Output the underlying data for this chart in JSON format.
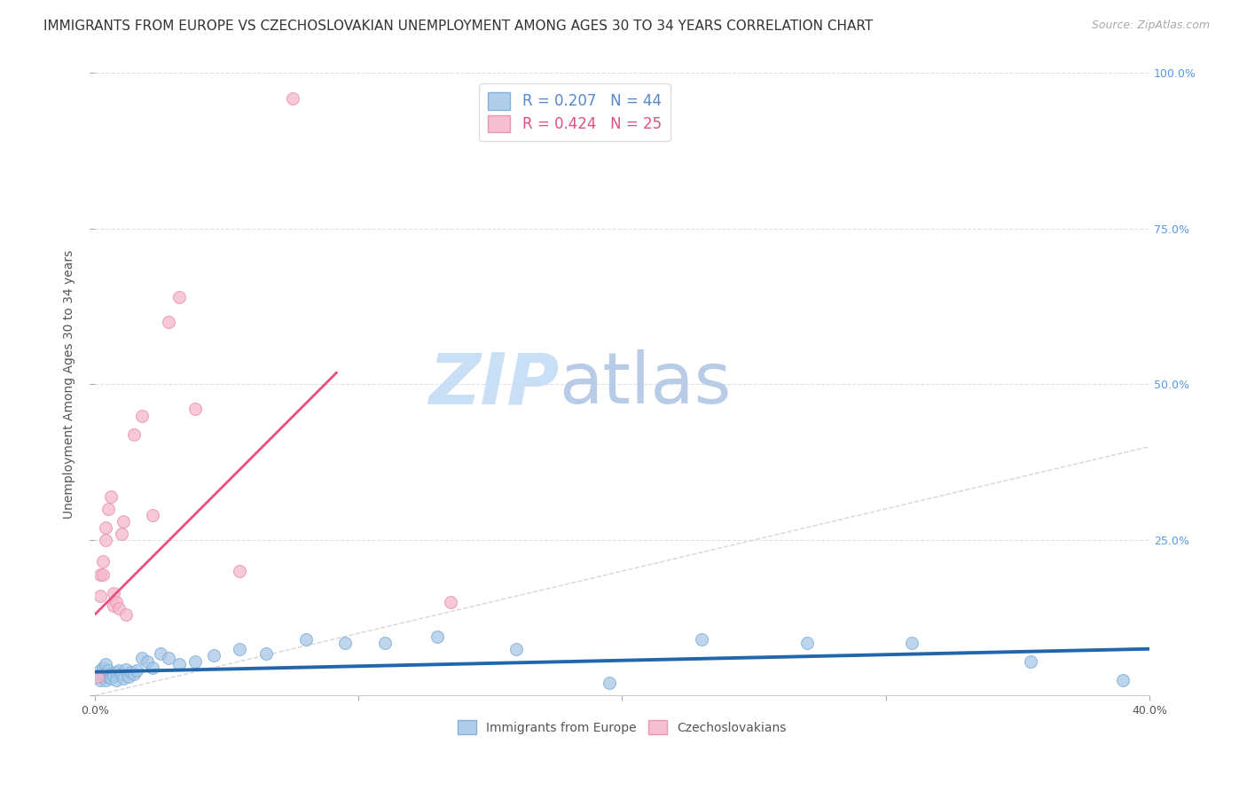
{
  "title": "IMMIGRANTS FROM EUROPE VS CZECHOSLOVAKIAN UNEMPLOYMENT AMONG AGES 30 TO 34 YEARS CORRELATION CHART",
  "source": "Source: ZipAtlas.com",
  "ylabel": "Unemployment Among Ages 30 to 34 years",
  "xlim": [
    0.0,
    0.4
  ],
  "ylim": [
    0.0,
    1.0
  ],
  "xticks": [
    0.0,
    0.1,
    0.2,
    0.3,
    0.4
  ],
  "xtick_labels": [
    "0.0%",
    "",
    "",
    "",
    "40.0%"
  ],
  "yticks": [
    0.0,
    0.25,
    0.5,
    0.75,
    1.0
  ],
  "ytick_labels_right": [
    "",
    "25.0%",
    "50.0%",
    "75.0%",
    "100.0%"
  ],
  "legend_entries": [
    {
      "label": "R = 0.207   N = 44"
    },
    {
      "label": "R = 0.424   N = 25"
    }
  ],
  "watermark_zip": "ZIP",
  "watermark_atlas": "atlas",
  "watermark_color_zip": "#c8dff5",
  "watermark_color_atlas": "#b8cce8",
  "blue_scatter_x": [
    0.001,
    0.002,
    0.002,
    0.003,
    0.003,
    0.003,
    0.004,
    0.004,
    0.005,
    0.005,
    0.006,
    0.006,
    0.007,
    0.008,
    0.008,
    0.009,
    0.01,
    0.011,
    0.012,
    0.013,
    0.014,
    0.015,
    0.016,
    0.018,
    0.02,
    0.022,
    0.025,
    0.028,
    0.032,
    0.038,
    0.045,
    0.055,
    0.065,
    0.08,
    0.095,
    0.11,
    0.13,
    0.16,
    0.195,
    0.23,
    0.27,
    0.31,
    0.355,
    0.39
  ],
  "blue_scatter_y": [
    0.03,
    0.025,
    0.04,
    0.03,
    0.035,
    0.045,
    0.025,
    0.05,
    0.03,
    0.04,
    0.035,
    0.028,
    0.032,
    0.038,
    0.025,
    0.04,
    0.035,
    0.028,
    0.042,
    0.03,
    0.038,
    0.035,
    0.04,
    0.06,
    0.055,
    0.045,
    0.068,
    0.06,
    0.05,
    0.055,
    0.065,
    0.075,
    0.068,
    0.09,
    0.085,
    0.085,
    0.095,
    0.075,
    0.02,
    0.09,
    0.085,
    0.085,
    0.055,
    0.025
  ],
  "pink_scatter_x": [
    0.001,
    0.002,
    0.002,
    0.003,
    0.003,
    0.004,
    0.004,
    0.005,
    0.006,
    0.007,
    0.007,
    0.008,
    0.009,
    0.01,
    0.011,
    0.012,
    0.015,
    0.018,
    0.022,
    0.028,
    0.032,
    0.038,
    0.055,
    0.075,
    0.135
  ],
  "pink_scatter_y": [
    0.03,
    0.16,
    0.195,
    0.215,
    0.195,
    0.25,
    0.27,
    0.3,
    0.32,
    0.165,
    0.145,
    0.15,
    0.14,
    0.26,
    0.28,
    0.13,
    0.42,
    0.45,
    0.29,
    0.6,
    0.64,
    0.46,
    0.2,
    0.96,
    0.15
  ],
  "blue_line_x": [
    0.0,
    0.4
  ],
  "blue_line_y": [
    0.038,
    0.075
  ],
  "pink_line_x": [
    0.0,
    0.092
  ],
  "pink_line_y": [
    0.13,
    0.52
  ],
  "ref_line_x": [
    0.0,
    0.4
  ],
  "ref_line_y": [
    0.0,
    0.4
  ],
  "scatter_size": 100,
  "blue_scatter_color": "#a8c8e8",
  "blue_scatter_edge": "#7aadd4",
  "pink_scatter_color": "#f5b8cc",
  "pink_scatter_edge": "#e890a8",
  "blue_line_color": "#2166ac",
  "pink_line_color": "#e8507a",
  "ref_line_color": "#cccccc",
  "background_color": "#ffffff",
  "grid_color": "#e0e0e0",
  "title_fontsize": 11,
  "source_fontsize": 9,
  "axis_label_fontsize": 10,
  "tick_fontsize": 9,
  "legend_fontsize": 12,
  "watermark_fontsize_zip": 58,
  "watermark_fontsize_atlas": 58,
  "right_tick_color": "#5599ee"
}
